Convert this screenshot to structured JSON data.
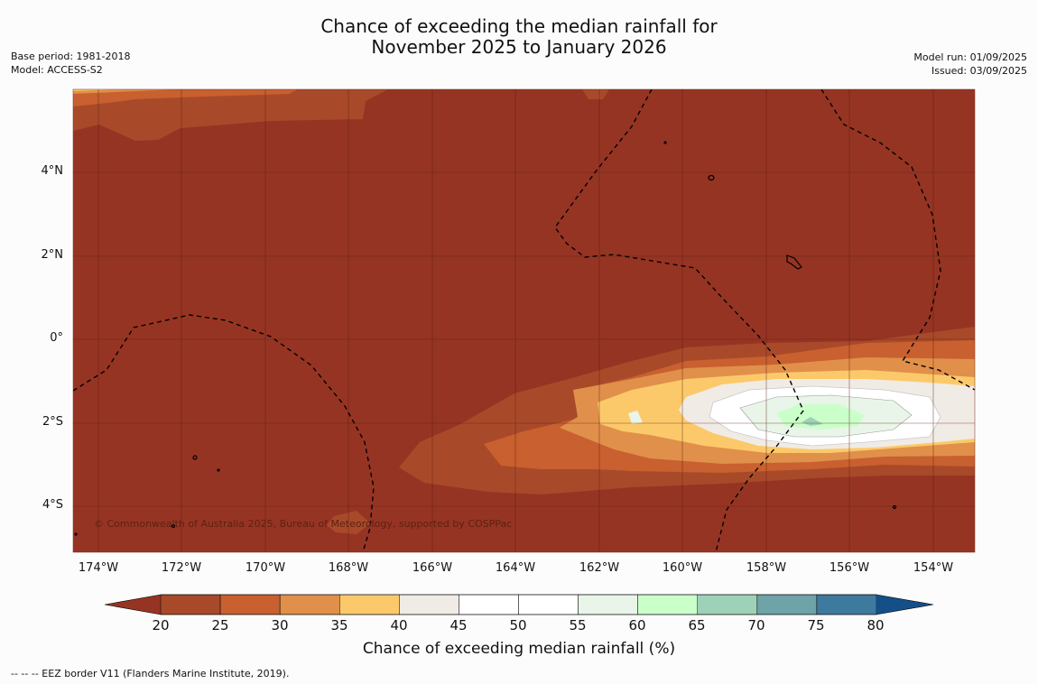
{
  "title_line1": "Chance of exceeding the median rainfall for",
  "title_line2": "November 2025 to January 2026",
  "base_period": "Base period: 1981-2018",
  "model": "Model: ACCESS-S2",
  "model_run": "Model run: 01/09/2025",
  "issued": "Issued: 03/09/2025",
  "copyright": "© Commonwealth of Australia 2025, Bureau of Meteorology, supported by COSPPac",
  "latitude_ticks": [
    "4°N",
    "2°N",
    "0°",
    "2°S",
    "4°S"
  ],
  "longitude_ticks": [
    "174°W",
    "172°W",
    "170°W",
    "168°W",
    "166°W",
    "164°W",
    "162°W",
    "160°W",
    "158°W",
    "156°W",
    "154°W"
  ],
  "colorbar": {
    "label": "Chance of exceeding median rainfall (%)",
    "ticks": [
      "20",
      "25",
      "30",
      "35",
      "40",
      "45",
      "50",
      "55",
      "60",
      "65",
      "70",
      "75",
      "80"
    ],
    "colors": [
      "#a84a2a",
      "#c8602f",
      "#e0904a",
      "#fcc96a",
      "#f0ebe5",
      "#ffffff",
      "#ffffff",
      "#e9f5e8",
      "#caffca",
      "#9ed2b8",
      "#6ea3a8",
      "#3e7a9e"
    ],
    "low_extend_color": "#963423",
    "high_extend_color": "#144f88"
  },
  "footnote": "--  --  -- EEZ border V11 (Flanders Marine Institute, 2019)."
}
